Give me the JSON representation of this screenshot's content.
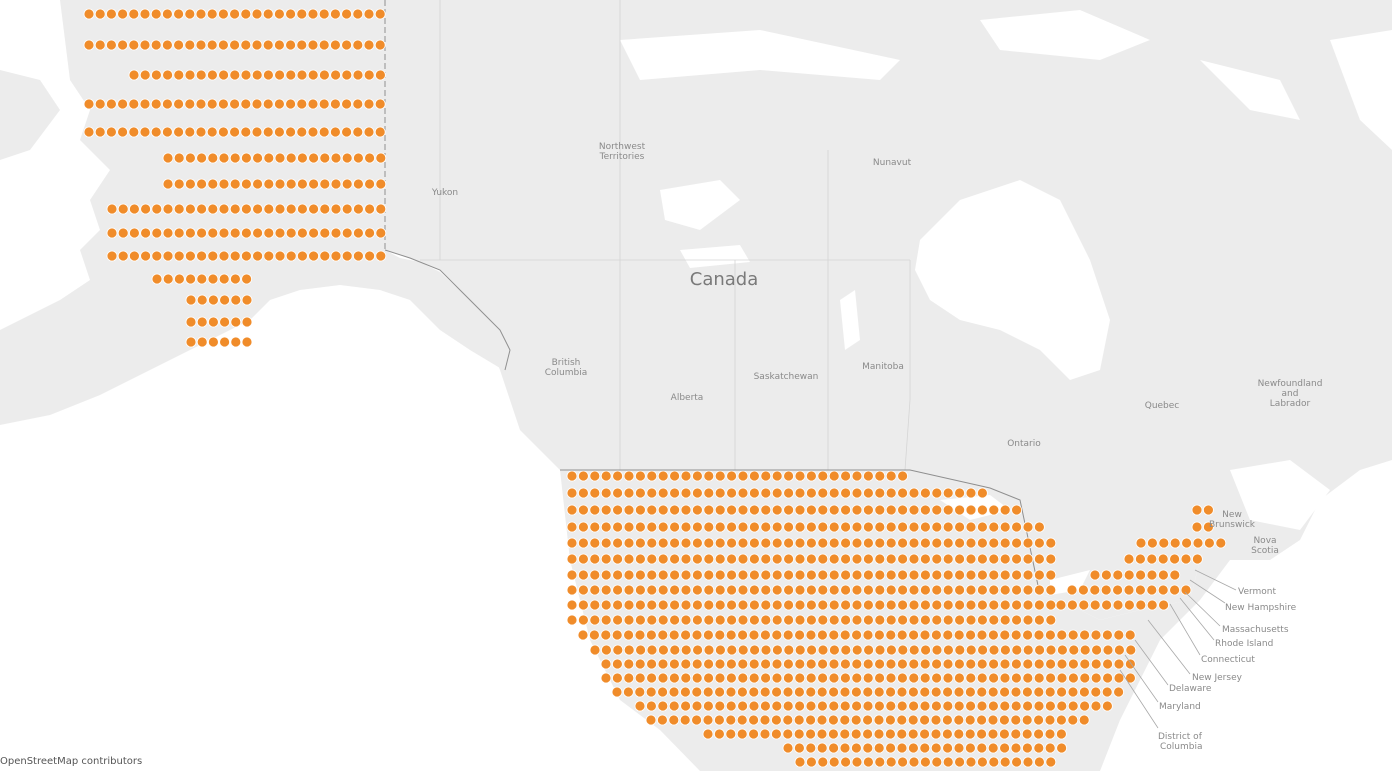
{
  "map": {
    "attribution": "OpenStreetMap contributors",
    "colors": {
      "ocean": "#ffffff",
      "land": "#ececec",
      "lake": "#ffffff",
      "border": "#8f8f8f",
      "dot": "#f08c2a",
      "dot_outline": "#ffffff"
    },
    "labels": {
      "country": "Canada",
      "yukon": "Yukon",
      "northwest_territories": [
        "Northwest",
        "Territories"
      ],
      "nunavut": "Nunavut",
      "british_columbia": [
        "British",
        "Columbia"
      ],
      "alberta": "Alberta",
      "saskatchewan": "Saskatchewan",
      "manitoba": "Manitoba",
      "ontario": "Ontario",
      "quebec": "Quebec",
      "newfoundland": [
        "Newfoundland",
        "and",
        "Labrador"
      ],
      "new_brunswick": [
        "New",
        "Brunswick"
      ],
      "nova_scotia": [
        "Nova",
        "Scotia"
      ],
      "vermont": "Vermont",
      "new_hampshire": "New Hampshire",
      "massachusetts": "Massachusetts",
      "rhode_island": "Rhode Island",
      "connecticut": "Connecticut",
      "new_jersey": "New Jersey",
      "delaware": "Delaware",
      "maryland": "Maryland",
      "district_of_columbia": [
        "District of",
        "Columbia"
      ]
    },
    "marker_icon": "circle-dot-icon"
  }
}
